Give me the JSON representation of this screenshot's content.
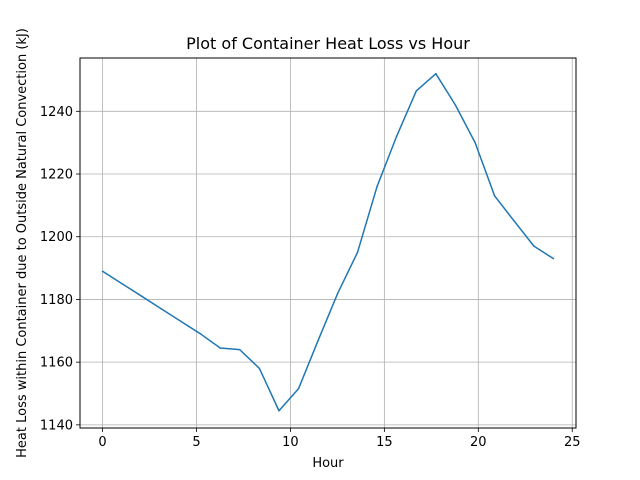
{
  "chart_data": {
    "type": "line",
    "title": "Plot of Container Heat Loss vs Hour",
    "xlabel": "Hour",
    "ylabel": "Heat Loss within Container due to Outside Natural Convection (kJ)",
    "xlim": [
      -1.2,
      25.2
    ],
    "ylim": [
      1139,
      1257
    ],
    "xticks": [
      0,
      5,
      10,
      15,
      20,
      25
    ],
    "yticks": [
      1140,
      1160,
      1180,
      1200,
      1220,
      1240
    ],
    "grid": true,
    "series": [
      {
        "name": "Heat Loss",
        "color": "#1f77b4",
        "x": [
          0,
          1.04,
          2.09,
          3.13,
          4.17,
          5.22,
          6.26,
          7.3,
          8.35,
          9.39,
          10.43,
          11.48,
          12.52,
          13.57,
          14.61,
          15.65,
          16.7,
          17.74,
          18.78,
          19.83,
          20.87,
          21.91,
          22.96,
          24
        ],
        "y": [
          1189,
          1185,
          1181,
          1177,
          1173,
          1169,
          1164.5,
          1164,
          1158,
          1144.5,
          1151.5,
          1167,
          1182,
          1195,
          1216,
          1232,
          1246.5,
          1252,
          1242,
          1230,
          1213,
          1205,
          1197,
          1193
        ]
      }
    ]
  }
}
